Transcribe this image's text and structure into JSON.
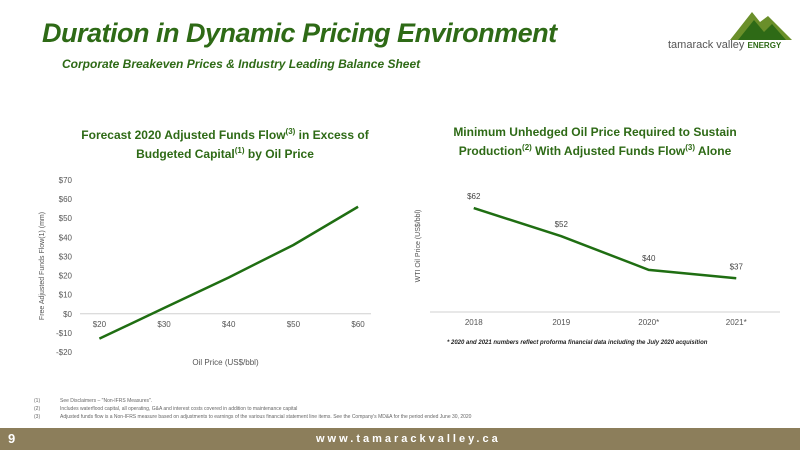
{
  "header": {
    "title": "Duration in Dynamic Pricing Environment",
    "subtitle": "Corporate Breakeven Prices & Industry Leading Balance Sheet"
  },
  "logo": {
    "name": "tamarack valley",
    "tag": "ENERGY",
    "color": "#6a8f2a"
  },
  "footnotes": [
    {
      "num": "(1)",
      "text": "See Disclaimers – \"Non-IFRS Measures\"."
    },
    {
      "num": "(2)",
      "text": "Includes waterflood capital, all operating, G&A and interest costs covered in addition to maintenance capital"
    },
    {
      "num": "(3)",
      "text": "Adjusted funds flow is a Non-IFRS measure based on adjustments to earnings of the various financial statement line items. See the Company's MD&A for the period ended June 30, 2020"
    }
  ],
  "footer": {
    "page": "9",
    "website": "www.tamarackvalley.ca",
    "bar_color": "#8c7e5b"
  },
  "colors": {
    "accent": "#2e6a16",
    "line": "#1f6e12"
  },
  "chart_data": [
    {
      "type": "line",
      "title_lines": [
        [
          "Forecast 2020 Adjusted Funds Flow",
          "(3)",
          " in Excess of"
        ],
        [
          "Budgeted Capital",
          "(1)",
          " by Oil Price"
        ]
      ],
      "xlabel": "Oil Price (US$/bbl)",
      "ylabel": "Free Adjusted Funds Flow(1) (mm)",
      "x": [
        "$20",
        "$30",
        "$40",
        "$50",
        "$60"
      ],
      "x_values": [
        20,
        30,
        40,
        50,
        60
      ],
      "xlim": [
        17,
        62
      ],
      "values": [
        -13,
        3,
        19,
        36,
        56
      ],
      "ylim": [
        -20,
        70
      ],
      "yticks": [
        -20,
        -10,
        0,
        10,
        20,
        30,
        40,
        50,
        60,
        70
      ],
      "ytick_labels": [
        "-$20",
        "-$10",
        "$0",
        "$10",
        "$20",
        "$30",
        "$40",
        "$50",
        "$60",
        "$70"
      ],
      "grid": false
    },
    {
      "type": "line",
      "title_lines": [
        [
          "Minimum Unhedged Oil Price Required to Sustain"
        ],
        [
          "Production",
          "(2)",
          " With Adjusted Funds Flow",
          "(3)",
          " Alone"
        ]
      ],
      "xlabel": "",
      "ylabel": "WTI Oil Price (US$/bbl)",
      "categories": [
        "2018",
        "2019",
        "2020*",
        "2021*"
      ],
      "values": [
        62,
        52,
        40,
        37
      ],
      "data_labels": [
        "$62",
        "$52",
        "$40",
        "$37"
      ],
      "ylim": [
        25,
        72
      ],
      "note": "* 2020 and 2021 numbers reflect proforma financial data including the July 2020 acquisition",
      "grid": false
    }
  ]
}
